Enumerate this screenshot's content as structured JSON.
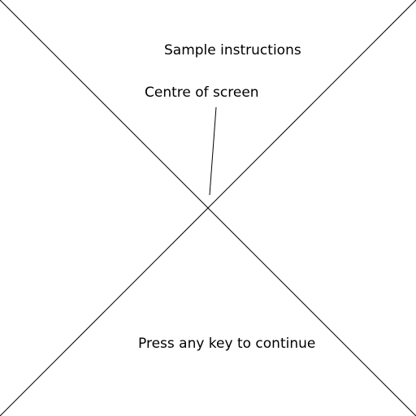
{
  "instructions": {
    "title": "Sample instructions",
    "centre_label": "Centre of screen",
    "continue_prompt": "Press any key to continue"
  },
  "colors": {
    "background": "#ffffff",
    "lines": "#000000",
    "text": "#000000"
  }
}
